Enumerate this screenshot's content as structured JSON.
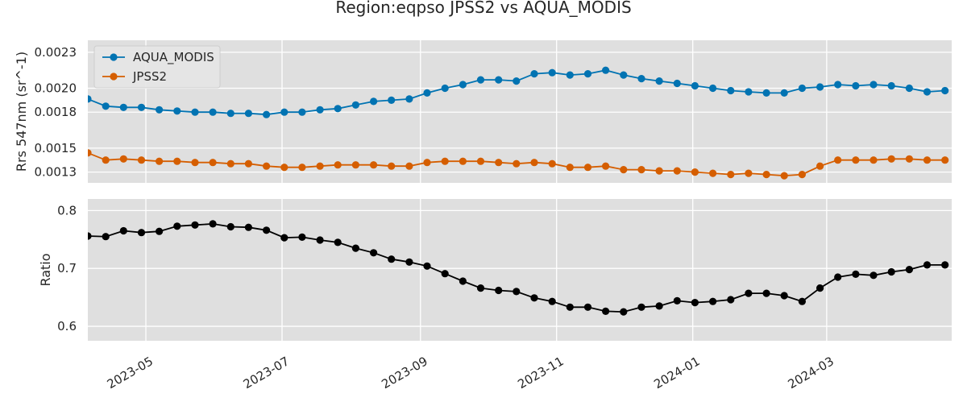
{
  "chart_data": {
    "type": "line",
    "title": "Region:eqpso JPSS2 vs AQUA_MODIS",
    "x_tick_labels": [
      "2023-05",
      "2023-07",
      "2023-09",
      "2023-11",
      "2024-01",
      "2024-03"
    ],
    "x_ticks": [
      "2023-05-01",
      "2023-07-01",
      "2023-09-01",
      "2023-11-01",
      "2024-01-01",
      "2024-03-01"
    ],
    "xlim": [
      "2023-04-05",
      "2024-04-26"
    ],
    "x": [
      "2023-04-05",
      "2023-04-13",
      "2023-04-21",
      "2023-04-29",
      "2023-05-07",
      "2023-05-15",
      "2023-05-23",
      "2023-05-31",
      "2023-06-08",
      "2023-06-16",
      "2023-06-24",
      "2023-07-02",
      "2023-07-10",
      "2023-07-18",
      "2023-07-26",
      "2023-08-03",
      "2023-08-11",
      "2023-08-19",
      "2023-08-27",
      "2023-09-04",
      "2023-09-12",
      "2023-09-20",
      "2023-09-28",
      "2023-10-06",
      "2023-10-14",
      "2023-10-22",
      "2023-10-30",
      "2023-11-07",
      "2023-11-15",
      "2023-11-23",
      "2023-12-01",
      "2023-12-09",
      "2023-12-17",
      "2023-12-25",
      "2024-01-02",
      "2024-01-10",
      "2024-01-18",
      "2024-01-26",
      "2024-02-03",
      "2024-02-11",
      "2024-02-19",
      "2024-02-27",
      "2024-03-06",
      "2024-03-14",
      "2024-03-22",
      "2024-03-30",
      "2024-04-07",
      "2024-04-15",
      "2024-04-23"
    ],
    "panels": [
      {
        "ylabel": "Rrs 547nm (sr^-1)",
        "ylim": [
          0.00121,
          0.0024
        ],
        "y_ticks": [
          0.0013,
          0.0015,
          0.0018,
          0.002,
          0.0023
        ],
        "y_tick_labels": [
          "0.0013",
          "0.0015",
          "0.0018",
          "0.0020",
          "0.0023"
        ],
        "legend": "upper-left",
        "grid": true,
        "series": [
          {
            "name": "AQUA_MODIS",
            "color": "#0173b2",
            "values": [
              0.00191,
              0.00185,
              0.00184,
              0.00184,
              0.00182,
              0.00181,
              0.0018,
              0.0018,
              0.00179,
              0.00179,
              0.00178,
              0.0018,
              0.0018,
              0.00182,
              0.00183,
              0.00186,
              0.00189,
              0.0019,
              0.00191,
              0.00196,
              0.002,
              0.00203,
              0.00207,
              0.00207,
              0.00206,
              0.00212,
              0.00213,
              0.00211,
              0.00212,
              0.00215,
              0.00211,
              0.00208,
              0.00206,
              0.00204,
              0.00202,
              0.002,
              0.00198,
              0.00197,
              0.00196,
              0.00196,
              0.002,
              0.00201,
              0.00203,
              0.00202,
              0.00203,
              0.00202,
              0.002,
              0.00197,
              0.00198
            ]
          },
          {
            "name": "JPSS2",
            "color": "#d55e00",
            "values": [
              0.00146,
              0.0014,
              0.00141,
              0.0014,
              0.00139,
              0.00139,
              0.00138,
              0.00138,
              0.00137,
              0.00137,
              0.00135,
              0.00134,
              0.00134,
              0.00135,
              0.00136,
              0.00136,
              0.00136,
              0.00135,
              0.00135,
              0.00138,
              0.00139,
              0.00139,
              0.00139,
              0.00138,
              0.00137,
              0.00138,
              0.00137,
              0.00134,
              0.00134,
              0.00135,
              0.00132,
              0.00132,
              0.00131,
              0.00131,
              0.0013,
              0.00129,
              0.00128,
              0.00129,
              0.00128,
              0.00127,
              0.00128,
              0.00135,
              0.0014,
              0.0014,
              0.0014,
              0.00141,
              0.00141,
              0.0014,
              0.0014
            ]
          }
        ]
      },
      {
        "ylabel": "Ratio",
        "ylim": [
          0.575,
          0.82
        ],
        "y_ticks": [
          0.6,
          0.7,
          0.8
        ],
        "y_tick_labels": [
          "0.6",
          "0.7",
          "0.8"
        ],
        "grid": true,
        "series": [
          {
            "color": "#000000",
            "values": [
              0.756,
              0.755,
              0.765,
              0.762,
              0.764,
              0.773,
              0.775,
              0.777,
              0.772,
              0.771,
              0.766,
              0.753,
              0.754,
              0.749,
              0.745,
              0.735,
              0.727,
              0.716,
              0.711,
              0.704,
              0.691,
              0.678,
              0.666,
              0.662,
              0.66,
              0.649,
              0.643,
              0.633,
              0.633,
              0.626,
              0.625,
              0.633,
              0.635,
              0.644,
              0.641,
              0.643,
              0.646,
              0.657,
              0.657,
              0.653,
              0.643,
              0.666,
              0.685,
              0.69,
              0.688,
              0.694,
              0.698,
              0.706,
              0.706
            ]
          }
        ]
      }
    ]
  }
}
